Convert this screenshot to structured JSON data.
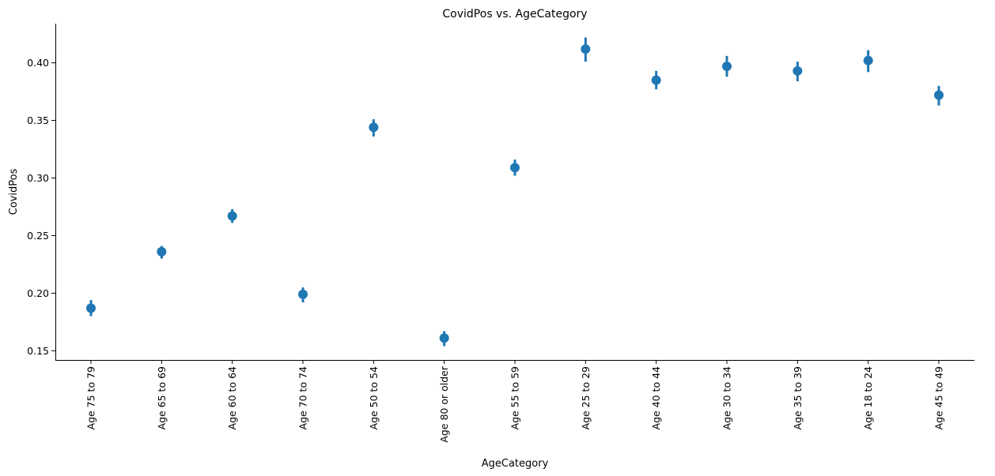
{
  "chart_data": {
    "type": "scatter",
    "title": "CovidPos vs. AgeCategory",
    "xlabel": "AgeCategory",
    "ylabel": "CovidPos",
    "categories": [
      "Age 75 to 79",
      "Age 65 to 69",
      "Age 60 to 64",
      "Age 70 to 74",
      "Age 50 to 54",
      "Age 80 or older",
      "Age 55 to 59",
      "Age 25 to 29",
      "Age 40 to 44",
      "Age 30 to 34",
      "Age 35 to 39",
      "Age 18 to 24",
      "Age 45 to 49"
    ],
    "series": [
      {
        "values": [
          0.187,
          0.236,
          0.267,
          0.199,
          0.344,
          0.161,
          0.309,
          0.412,
          0.385,
          0.397,
          0.393,
          0.402,
          0.372
        ],
        "ci_low": [
          0.18,
          0.23,
          0.261,
          0.192,
          0.336,
          0.154,
          0.302,
          0.401,
          0.377,
          0.388,
          0.384,
          0.392,
          0.363
        ],
        "ci_high": [
          0.194,
          0.241,
          0.273,
          0.205,
          0.351,
          0.167,
          0.316,
          0.422,
          0.393,
          0.406,
          0.401,
          0.411,
          0.38
        ]
      }
    ],
    "yticks": [
      "0.15",
      "0.20",
      "0.25",
      "0.30",
      "0.35",
      "0.40"
    ],
    "ylim": [
      0.142,
      0.434
    ],
    "color": "#1f77b4",
    "grid": false,
    "legend": "none"
  }
}
